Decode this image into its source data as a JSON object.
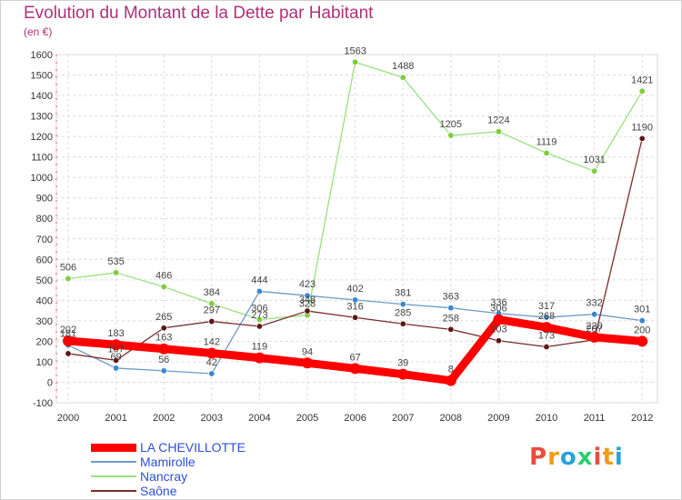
{
  "title": "Evolution du Montant de la Dette par Habitant",
  "unit": "(en €)",
  "logo": {
    "text": "Proxiti",
    "letters": [
      {
        "ch": "P",
        "color": "#e74c3c"
      },
      {
        "ch": "r",
        "color": "#f39c12"
      },
      {
        "ch": "o",
        "color": "#27a2db"
      },
      {
        "ch": "x",
        "color": "#2ecc71"
      },
      {
        "ch": "i",
        "color": "#e74c3c"
      },
      {
        "ch": "t",
        "color": "#f39c12"
      },
      {
        "ch": "i",
        "color": "#27a2db"
      }
    ]
  },
  "chart_data": {
    "type": "line",
    "title": "Evolution du Montant de la Dette par Habitant",
    "ylabel": "(en €)",
    "xlabel": "",
    "x": [
      "2000",
      "2001",
      "2002",
      "2003",
      "2004",
      "2005",
      "2006",
      "2007",
      "2008",
      "2009",
      "2010",
      "2011",
      "2012"
    ],
    "ylim": [
      -100,
      1600
    ],
    "yticks": [
      -100,
      0,
      100,
      200,
      300,
      400,
      500,
      600,
      700,
      800,
      900,
      1000,
      1100,
      1200,
      1300,
      1400,
      1500,
      1600
    ],
    "grid": true,
    "legend": "bottom-left",
    "series": [
      {
        "name": "LA CHEVILLOTTE",
        "color": "#ff0000",
        "width": 9,
        "values": [
          202,
          183,
          163,
          142,
          119,
          94,
          67,
          39,
          8,
          306,
          268,
          220,
          200
        ],
        "labels": [
          "202",
          "183",
          "163",
          "142",
          "119",
          "94",
          "67",
          "39",
          "8",
          "306",
          "268",
          "220",
          "200"
        ]
      },
      {
        "name": "Mamirolle",
        "color": "#6b9bc8",
        "width": 1.3,
        "marker": "#3a86cf",
        "values": [
          181,
          69,
          56,
          42,
          444,
          423,
          402,
          381,
          363,
          336,
          317,
          332,
          301
        ],
        "labels": [
          "181",
          "69",
          "56",
          "42",
          "444",
          "423",
          "402",
          "381",
          "363",
          "336",
          "317",
          "332",
          "301"
        ]
      },
      {
        "name": "Nancray",
        "color": "#99e07f",
        "width": 1.3,
        "marker": "#7ccc3c",
        "values": [
          506,
          535,
          466,
          384,
          306,
          328,
          1563,
          1488,
          1205,
          1224,
          1119,
          1031,
          1421
        ],
        "labels": [
          "506",
          "535",
          "466",
          "384",
          "306",
          "328",
          "1563",
          "1488",
          "1205",
          "1224",
          "1119",
          "1031",
          "1421"
        ]
      },
      {
        "name": "Saône",
        "color": "#7a2b2b",
        "width": 1.3,
        "marker": "#5e1616",
        "values": [
          140,
          107,
          265,
          297,
          273,
          348,
          316,
          285,
          258,
          203,
          173,
          207,
          1190
        ],
        "labels": [
          "",
          "107",
          "265",
          "297",
          "273",
          "348",
          "316",
          "285",
          "258",
          "203",
          "173",
          "207",
          "1190"
        ]
      }
    ]
  }
}
